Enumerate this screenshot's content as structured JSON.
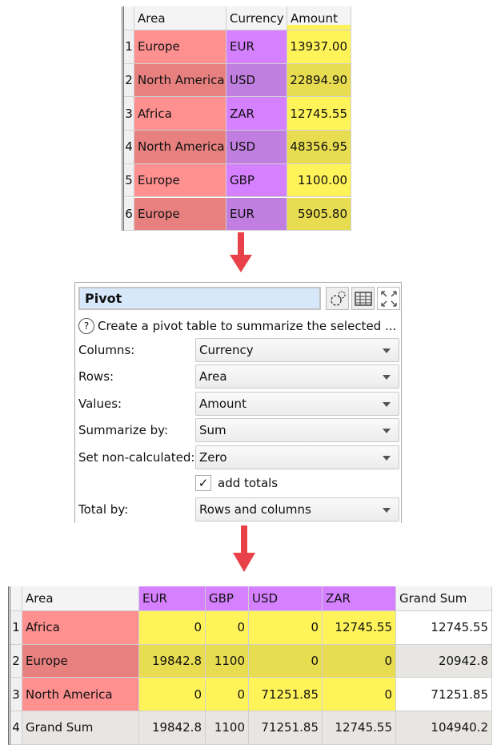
{
  "source_table": {
    "headers": [
      "Area",
      "Currency",
      "Amount"
    ],
    "rows": [
      [
        "1",
        "Europe",
        "EUR",
        "13937.00"
      ],
      [
        "2",
        "North America",
        "USD",
        "22894.90"
      ],
      [
        "3",
        "Africa",
        "ZAR",
        "12745.55"
      ],
      [
        "4",
        "North America",
        "USD",
        "48356.95"
      ],
      [
        "5",
        "Europe",
        "GBP",
        "1100.00"
      ],
      [
        "6",
        "Europe",
        "EUR",
        "5905.80"
      ]
    ]
  },
  "pivot": {
    "title": "Pivot",
    "help_text": "Create a pivot table to summarize the selected ...",
    "icons": [
      "gears-icon",
      "table-icon",
      "expand-icon"
    ],
    "fields": [
      {
        "label": "Columns:",
        "value": "Currency"
      },
      {
        "label": "Rows:",
        "value": "Area"
      },
      {
        "label": "Values:",
        "value": "Amount"
      },
      {
        "label": "Summarize by:",
        "value": "Sum"
      },
      {
        "label": "Set non-calculated:",
        "value": "Zero"
      }
    ],
    "add_totals": {
      "label": "add totals",
      "checked": true
    },
    "total_by": {
      "label": "Total by:",
      "value": "Rows and columns"
    }
  },
  "result_table": {
    "headers": [
      "Area",
      "EUR",
      "GBP",
      "USD",
      "ZAR",
      "Grand Sum"
    ],
    "rows": [
      [
        "1",
        "Africa",
        "0",
        "0",
        "0",
        "12745.55",
        "12745.55"
      ],
      [
        "2",
        "Europe",
        "19842.8",
        "1100",
        "0",
        "0",
        "20942.8"
      ],
      [
        "3",
        "North America",
        "0",
        "0",
        "71251.85",
        "0",
        "71251.85"
      ],
      [
        "4",
        "Grand Sum",
        "19842.8",
        "1100",
        "71251.85",
        "12745.55",
        "104940.2"
      ]
    ]
  },
  "colors": {
    "area": "#ff9090",
    "currency": "#d580ff",
    "amount": "#fff35a",
    "arrow": "#e8414a"
  }
}
